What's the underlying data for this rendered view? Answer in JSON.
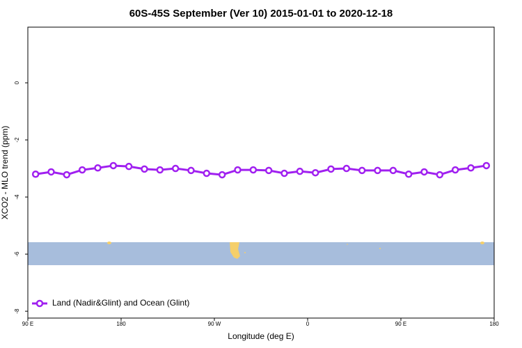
{
  "chart_data": {
    "type": "line",
    "title": "60S-45S September (Ver 10)   2015-01-01 to 2020-12-18",
    "x_label": "Longitude (deg E)",
    "y_label": "XCO2 - MLO trend (ppm)",
    "xlim": [
      90,
      540
    ],
    "xticks": [
      {
        "value": 90,
        "label": "90 E"
      },
      {
        "value": 180,
        "label": "180"
      },
      {
        "value": 270,
        "label": "90 W"
      },
      {
        "value": 360,
        "label": "0"
      },
      {
        "value": 450,
        "label": "90 E"
      },
      {
        "value": 540,
        "label": "180"
      }
    ],
    "ylim": [
      -8.24,
      1.95
    ],
    "yticks": [
      0,
      -2,
      -4,
      -6,
      -8
    ],
    "legend": "bottom-left",
    "series": [
      {
        "name": "Land (Nadir&Glint) and Ocean (Glint)",
        "color": "#a020f0",
        "x": [
          97.5,
          112.5,
          127.5,
          142.5,
          157.5,
          172.5,
          187.5,
          202.5,
          217.5,
          232.5,
          247.5,
          262.5,
          277.5,
          292.5,
          307.5,
          322.5,
          337.5,
          352.5,
          367.5,
          382.5,
          397.5,
          412.5,
          427.5,
          442.5,
          457.5,
          472.5,
          487.5,
          502.5,
          517.5,
          532.5
        ],
        "values": [
          -3.2,
          -3.12,
          -3.22,
          -3.05,
          -2.98,
          -2.9,
          -2.93,
          -3.02,
          -3.05,
          -3.0,
          -3.07,
          -3.17,
          -3.22,
          -3.05,
          -3.05,
          -3.07,
          -3.17,
          -3.1,
          -3.15,
          -3.02,
          -3.0,
          -3.07,
          -3.07,
          -3.07,
          -3.2,
          -3.12,
          -3.22,
          -3.05,
          -2.98,
          -2.9
        ]
      }
    ]
  }
}
